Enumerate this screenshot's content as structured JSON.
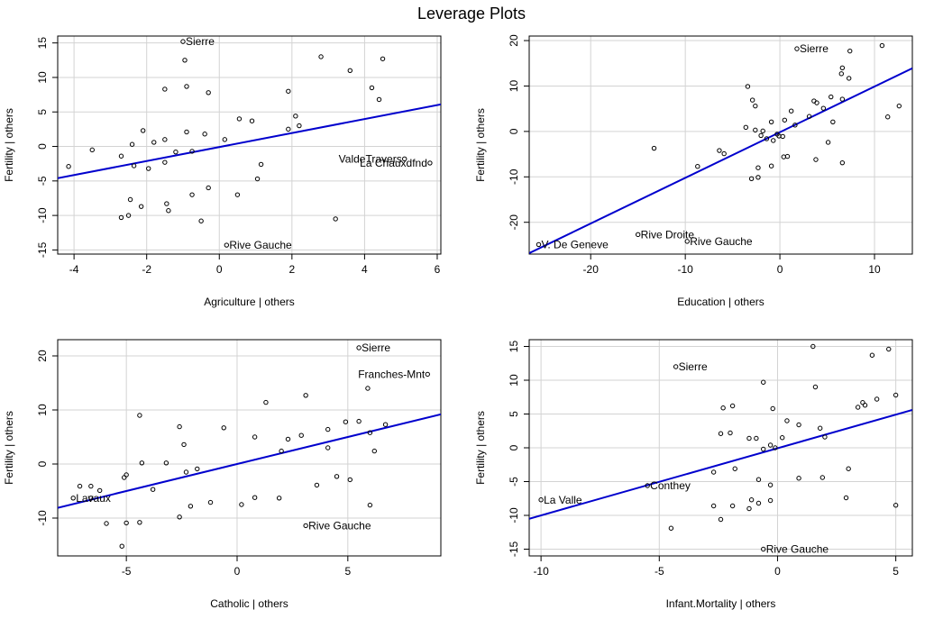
{
  "page": {
    "title": "Leverage Plots"
  },
  "colors": {
    "fit_line": "#0000CD",
    "grid": "#D3D3D3",
    "points": "#000000",
    "axes": "#000000"
  },
  "chart_data": [
    {
      "type": "scatter",
      "id": "agriculture",
      "xlabel": "Agriculture | others",
      "ylabel": "Fertility  | others",
      "xlim": [
        -4.45,
        6.1
      ],
      "ylim": [
        -15.6,
        16.0
      ],
      "xticks": [
        -4,
        -2,
        0,
        2,
        4,
        6
      ],
      "yticks": [
        -15,
        -10,
        -5,
        0,
        5,
        10,
        15
      ],
      "grid": true,
      "fit_line": {
        "x": [
          -4.45,
          6.1
        ],
        "y": [
          -4.6,
          6.1
        ]
      },
      "points": [
        {
          "x": -1.0,
          "y": 15.2,
          "label": "Sierre"
        },
        {
          "x": 0.2,
          "y": -14.3,
          "label": "Rive Gauche"
        },
        {
          "x": 5.1,
          "y": -1.8,
          "label": "ValdeTravers"
        },
        {
          "x": 5.8,
          "y": -2.4,
          "label": "La Chauxdfnd"
        },
        {
          "x": -0.95,
          "y": 12.5
        },
        {
          "x": -0.9,
          "y": 8.7
        },
        {
          "x": -1.5,
          "y": 8.3
        },
        {
          "x": -0.3,
          "y": 7.8
        },
        {
          "x": 2.8,
          "y": 13.0
        },
        {
          "x": 3.6,
          "y": 11.0
        },
        {
          "x": 4.5,
          "y": 12.7
        },
        {
          "x": 4.2,
          "y": 8.5
        },
        {
          "x": 4.4,
          "y": 6.8
        },
        {
          "x": 1.9,
          "y": 8.0
        },
        {
          "x": 0.55,
          "y": 4.0
        },
        {
          "x": 0.9,
          "y": 3.7
        },
        {
          "x": 2.1,
          "y": 4.4
        },
        {
          "x": 2.2,
          "y": 3.0
        },
        {
          "x": 1.9,
          "y": 2.5
        },
        {
          "x": -2.1,
          "y": 2.3
        },
        {
          "x": -0.9,
          "y": 2.1
        },
        {
          "x": -0.4,
          "y": 1.8
        },
        {
          "x": 0.15,
          "y": 1.0
        },
        {
          "x": -1.5,
          "y": 1.0
        },
        {
          "x": -1.8,
          "y": 0.6
        },
        {
          "x": -2.4,
          "y": 0.3
        },
        {
          "x": -1.2,
          "y": -0.8
        },
        {
          "x": -3.5,
          "y": -0.5
        },
        {
          "x": -0.75,
          "y": -0.7
        },
        {
          "x": -2.7,
          "y": -1.4
        },
        {
          "x": -1.5,
          "y": -2.3
        },
        {
          "x": -1.95,
          "y": -3.2
        },
        {
          "x": -2.35,
          "y": -2.8
        },
        {
          "x": -4.15,
          "y": -2.9
        },
        {
          "x": 1.15,
          "y": -2.6
        },
        {
          "x": 1.05,
          "y": -4.7
        },
        {
          "x": -0.3,
          "y": -6.0
        },
        {
          "x": -0.75,
          "y": -7.0
        },
        {
          "x": 0.5,
          "y": -7.0
        },
        {
          "x": -2.45,
          "y": -7.7
        },
        {
          "x": -1.45,
          "y": -8.3
        },
        {
          "x": -1.4,
          "y": -9.3
        },
        {
          "x": -2.15,
          "y": -8.7
        },
        {
          "x": -2.5,
          "y": -10.0
        },
        {
          "x": -2.7,
          "y": -10.3
        },
        {
          "x": -0.5,
          "y": -10.8
        },
        {
          "x": 3.2,
          "y": -10.5
        }
      ]
    },
    {
      "type": "scatter",
      "id": "education",
      "xlabel": "Education | others",
      "ylabel": "Fertility  | others",
      "xlim": [
        -26.5,
        14.0
      ],
      "ylim": [
        -27.0,
        21.0
      ],
      "xticks": [
        -20,
        -10,
        0,
        10
      ],
      "yticks": [
        -20,
        -10,
        0,
        10,
        20
      ],
      "grid": true,
      "fit_line": {
        "x": [
          -26.5,
          14.0
        ],
        "y": [
          -26.8,
          13.9
        ]
      },
      "points": [
        {
          "x": 1.8,
          "y": 18.2,
          "label": "Sierre"
        },
        {
          "x": -15.0,
          "y": -22.7,
          "label": "Rive Droite"
        },
        {
          "x": -9.8,
          "y": -24.2,
          "label": "Rive Gauche"
        },
        {
          "x": -25.5,
          "y": -24.9,
          "label": "V. De Geneve"
        },
        {
          "x": 10.8,
          "y": 18.9
        },
        {
          "x": 7.4,
          "y": 17.7
        },
        {
          "x": 6.6,
          "y": 14.0
        },
        {
          "x": 6.5,
          "y": 12.7
        },
        {
          "x": 7.3,
          "y": 11.7
        },
        {
          "x": -3.4,
          "y": 9.9
        },
        {
          "x": -2.9,
          "y": 6.9
        },
        {
          "x": -2.6,
          "y": 5.6
        },
        {
          "x": 3.6,
          "y": 6.7
        },
        {
          "x": 3.9,
          "y": 6.3
        },
        {
          "x": 4.6,
          "y": 5.1
        },
        {
          "x": 6.6,
          "y": 7.1
        },
        {
          "x": 5.4,
          "y": 7.6
        },
        {
          "x": 1.2,
          "y": 4.5
        },
        {
          "x": 3.1,
          "y": 3.3
        },
        {
          "x": 11.4,
          "y": 3.2
        },
        {
          "x": 12.6,
          "y": 5.6
        },
        {
          "x": 5.6,
          "y": 2.1
        },
        {
          "x": 1.6,
          "y": 1.4
        },
        {
          "x": -0.9,
          "y": 2.1
        },
        {
          "x": 0.5,
          "y": 2.5
        },
        {
          "x": -3.6,
          "y": 0.9
        },
        {
          "x": -2.6,
          "y": 0.3
        },
        {
          "x": -1.8,
          "y": 0.1
        },
        {
          "x": -2.0,
          "y": -0.9
        },
        {
          "x": -0.3,
          "y": -0.6
        },
        {
          "x": -0.1,
          "y": -1.0
        },
        {
          "x": 0.3,
          "y": -1.1
        },
        {
          "x": -1.4,
          "y": -1.6
        },
        {
          "x": -0.7,
          "y": -2.0
        },
        {
          "x": 5.1,
          "y": -2.4
        },
        {
          "x": -6.4,
          "y": -4.2
        },
        {
          "x": -5.9,
          "y": -4.9
        },
        {
          "x": -13.3,
          "y": -3.7
        },
        {
          "x": 0.4,
          "y": -5.6
        },
        {
          "x": 0.8,
          "y": -5.5
        },
        {
          "x": 3.8,
          "y": -6.2
        },
        {
          "x": 6.6,
          "y": -6.9
        },
        {
          "x": -8.7,
          "y": -7.7
        },
        {
          "x": -2.3,
          "y": -8.0
        },
        {
          "x": -0.9,
          "y": -7.6
        },
        {
          "x": -3.0,
          "y": -10.4
        },
        {
          "x": -2.3,
          "y": -10.1
        }
      ]
    },
    {
      "type": "scatter",
      "id": "catholic",
      "xlabel": "Catholic | others",
      "ylabel": "Fertility  | others",
      "xlim": [
        -8.1,
        9.2
      ],
      "ylim": [
        -17.0,
        23.0
      ],
      "xticks": [
        -5,
        0,
        5
      ],
      "yticks": [
        -10,
        0,
        10,
        20
      ],
      "grid": true,
      "fit_line": {
        "x": [
          -8.1,
          9.2
        ],
        "y": [
          -8.1,
          9.2
        ]
      },
      "points": [
        {
          "x": 5.5,
          "y": 21.5,
          "label": "Sierre"
        },
        {
          "x": 8.6,
          "y": 16.6,
          "label": "Franches-Mnt"
        },
        {
          "x": 3.1,
          "y": -11.4,
          "label": "Rive Gauche"
        },
        {
          "x": -7.4,
          "y": -6.3,
          "label": "Lavaux"
        },
        {
          "x": 5.9,
          "y": 14.0
        },
        {
          "x": 1.3,
          "y": 11.4
        },
        {
          "x": 3.1,
          "y": 12.7
        },
        {
          "x": -4.4,
          "y": 9.0
        },
        {
          "x": 6.7,
          "y": 7.3
        },
        {
          "x": 5.5,
          "y": 7.9
        },
        {
          "x": 4.9,
          "y": 7.8
        },
        {
          "x": -0.6,
          "y": 6.7
        },
        {
          "x": 4.1,
          "y": 6.4
        },
        {
          "x": -2.6,
          "y": 6.9
        },
        {
          "x": 2.9,
          "y": 5.3
        },
        {
          "x": 2.3,
          "y": 4.6
        },
        {
          "x": 0.8,
          "y": 5.0
        },
        {
          "x": 6.0,
          "y": 5.8
        },
        {
          "x": 4.1,
          "y": 3.0
        },
        {
          "x": -2.4,
          "y": 3.6
        },
        {
          "x": 6.2,
          "y": 2.4
        },
        {
          "x": 2.0,
          "y": 2.4
        },
        {
          "x": -4.3,
          "y": 0.2
        },
        {
          "x": -3.2,
          "y": 0.2
        },
        {
          "x": -1.8,
          "y": -0.9
        },
        {
          "x": -2.3,
          "y": -1.5
        },
        {
          "x": -5.0,
          "y": -2.0
        },
        {
          "x": -5.1,
          "y": -2.5
        },
        {
          "x": 4.5,
          "y": -2.3
        },
        {
          "x": 5.1,
          "y": -2.9
        },
        {
          "x": -3.8,
          "y": -4.7
        },
        {
          "x": 3.6,
          "y": -3.9
        },
        {
          "x": -7.1,
          "y": -4.1
        },
        {
          "x": -6.6,
          "y": -4.1
        },
        {
          "x": -6.2,
          "y": -4.9
        },
        {
          "x": -6.6,
          "y": -6.3
        },
        {
          "x": -1.2,
          "y": -7.1
        },
        {
          "x": 0.2,
          "y": -7.5
        },
        {
          "x": 0.8,
          "y": -6.2
        },
        {
          "x": 1.9,
          "y": -6.3
        },
        {
          "x": 6.0,
          "y": -7.6
        },
        {
          "x": -2.1,
          "y": -7.8
        },
        {
          "x": -2.6,
          "y": -9.8
        },
        {
          "x": -5.0,
          "y": -10.9
        },
        {
          "x": -4.4,
          "y": -10.8
        },
        {
          "x": -5.9,
          "y": -11.0
        },
        {
          "x": -5.2,
          "y": -15.2
        }
      ]
    },
    {
      "type": "scatter",
      "id": "infant-mortality",
      "xlabel": "Infant.Mortality | others",
      "ylabel": "Fertility  | others",
      "xlim": [
        -10.5,
        5.7
      ],
      "ylim": [
        -16.0,
        16.0
      ],
      "xticks": [
        -10,
        -5,
        0,
        5
      ],
      "yticks": [
        -15,
        -10,
        -5,
        0,
        5,
        10,
        15
      ],
      "grid": true,
      "fit_line": {
        "x": [
          -10.5,
          5.7
        ],
        "y": [
          -10.5,
          5.6
        ]
      },
      "points": [
        {
          "x": -4.3,
          "y": 12.0,
          "label": "Sierre"
        },
        {
          "x": -5.5,
          "y": -5.6,
          "label": "Conthey"
        },
        {
          "x": -0.6,
          "y": -15.0,
          "label": "Rive Gauche"
        },
        {
          "x": -10.0,
          "y": -7.7,
          "label": "La Valle"
        },
        {
          "x": 1.5,
          "y": 15.0
        },
        {
          "x": 4.7,
          "y": 14.6
        },
        {
          "x": 4.0,
          "y": 13.7
        },
        {
          "x": -0.6,
          "y": 9.7
        },
        {
          "x": 1.6,
          "y": 9.0
        },
        {
          "x": 4.2,
          "y": 7.2
        },
        {
          "x": 5.0,
          "y": 7.8
        },
        {
          "x": 3.6,
          "y": 6.7
        },
        {
          "x": 3.7,
          "y": 6.3
        },
        {
          "x": 3.4,
          "y": 6.0
        },
        {
          "x": -1.9,
          "y": 6.2
        },
        {
          "x": -2.3,
          "y": 5.9
        },
        {
          "x": -0.2,
          "y": 5.8
        },
        {
          "x": 0.4,
          "y": 4.0
        },
        {
          "x": 0.9,
          "y": 3.4
        },
        {
          "x": 1.8,
          "y": 2.9
        },
        {
          "x": 2.0,
          "y": 1.6
        },
        {
          "x": -2.4,
          "y": 2.1
        },
        {
          "x": -2.0,
          "y": 2.2
        },
        {
          "x": -1.2,
          "y": 1.4
        },
        {
          "x": -0.9,
          "y": 1.4
        },
        {
          "x": 0.2,
          "y": 1.5
        },
        {
          "x": -0.3,
          "y": 0.4
        },
        {
          "x": -0.1,
          "y": 0.0
        },
        {
          "x": -0.6,
          "y": -0.2
        },
        {
          "x": -1.8,
          "y": -3.1
        },
        {
          "x": -2.7,
          "y": -3.6
        },
        {
          "x": 0.9,
          "y": -4.5
        },
        {
          "x": 1.9,
          "y": -4.4
        },
        {
          "x": 3.0,
          "y": -3.1
        },
        {
          "x": -0.8,
          "y": -4.7
        },
        {
          "x": -0.3,
          "y": -5.5
        },
        {
          "x": -1.1,
          "y": -7.7
        },
        {
          "x": -0.3,
          "y": -7.8
        },
        {
          "x": 2.9,
          "y": -7.4
        },
        {
          "x": -2.7,
          "y": -8.6
        },
        {
          "x": -1.9,
          "y": -8.6
        },
        {
          "x": -1.2,
          "y": -9.0
        },
        {
          "x": -0.8,
          "y": -8.2
        },
        {
          "x": 5.0,
          "y": -8.5
        },
        {
          "x": -2.4,
          "y": -10.6
        },
        {
          "x": -4.5,
          "y": -11.9
        }
      ]
    }
  ]
}
